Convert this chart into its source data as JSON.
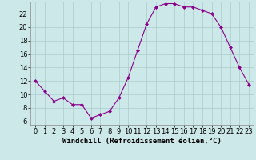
{
  "x": [
    0,
    1,
    2,
    3,
    4,
    5,
    6,
    7,
    8,
    9,
    10,
    11,
    12,
    13,
    14,
    15,
    16,
    17,
    18,
    19,
    20,
    21,
    22,
    23
  ],
  "y": [
    12,
    10.5,
    9,
    9.5,
    8.5,
    8.5,
    6.5,
    7,
    7.5,
    9.5,
    12.5,
    16.5,
    20.5,
    23,
    23.5,
    23.5,
    23,
    23,
    22.5,
    22,
    20,
    17,
    14,
    11.5
  ],
  "line_color": "#8B008B",
  "marker": "D",
  "marker_size": 2,
  "background_color": "#cce8e8",
  "grid_color": "#aacccc",
  "xlabel": "Windchill (Refroidissement éolien,°C)",
  "xlabel_fontsize": 6.5,
  "tick_fontsize": 6,
  "ylim": [
    5.5,
    23.8
  ],
  "xlim": [
    -0.5,
    23.5
  ],
  "yticks": [
    6,
    8,
    10,
    12,
    14,
    16,
    18,
    20,
    22
  ],
  "xticks": [
    0,
    1,
    2,
    3,
    4,
    5,
    6,
    7,
    8,
    9,
    10,
    11,
    12,
    13,
    14,
    15,
    16,
    17,
    18,
    19,
    20,
    21,
    22,
    23
  ]
}
